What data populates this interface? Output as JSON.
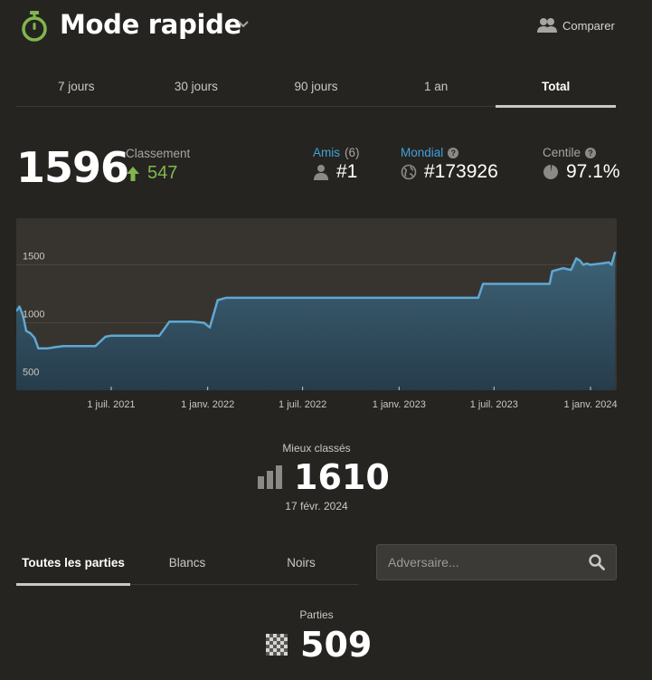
{
  "header": {
    "title": "Mode rapide",
    "compare_label": "Comparer"
  },
  "period_tabs": [
    {
      "label": "7 jours",
      "active": false
    },
    {
      "label": "30 jours",
      "active": false
    },
    {
      "label": "90 jours",
      "active": false
    },
    {
      "label": "1 an",
      "active": false
    },
    {
      "label": "Total",
      "active": true
    }
  ],
  "stats": {
    "rating": "1596",
    "rank_label": "Classement",
    "rank_change": "547",
    "friends_label": "Amis",
    "friends_count": "(6)",
    "friends_rank": "#1",
    "global_label": "Mondial",
    "global_rank": "#173926",
    "percentile_label": "Centile",
    "percentile_value": "97.1%"
  },
  "chart_data": {
    "type": "area",
    "y_ticks": [
      "1500",
      "1000",
      "500"
    ],
    "ylim": [
      420,
      1900
    ],
    "grid": true,
    "x_tick_labels": [
      "1 juil. 2021",
      "1 janv. 2022",
      "1 juil. 2022",
      "1 janv. 2023",
      "1 juil. 2023",
      "1 janv. 2024"
    ],
    "x_tick_dates": [
      "2021-07-01",
      "2022-01-01",
      "2022-07-01",
      "2023-01-01",
      "2023-07-01",
      "2024-01-01"
    ],
    "x": [
      "2021-01-01",
      "2021-01-07",
      "2021-01-14",
      "2021-01-20",
      "2021-01-28",
      "2021-02-05",
      "2021-02-12",
      "2021-03-01",
      "2021-03-15",
      "2021-04-01",
      "2021-05-01",
      "2021-06-01",
      "2021-06-20",
      "2021-07-01",
      "2021-08-15",
      "2021-10-01",
      "2021-10-20",
      "2021-11-15",
      "2021-12-01",
      "2021-12-25",
      "2022-01-05",
      "2022-01-20",
      "2022-02-05",
      "2022-02-12",
      "2022-03-01",
      "2022-06-01",
      "2022-10-01",
      "2023-01-01",
      "2023-05-01",
      "2023-06-01",
      "2023-06-10",
      "2023-09-01",
      "2023-10-15",
      "2023-10-20",
      "2023-11-10",
      "2023-11-25",
      "2023-12-05",
      "2023-12-12",
      "2023-12-18",
      "2023-12-25",
      "2024-01-01",
      "2024-01-20",
      "2024-02-05",
      "2024-02-10",
      "2024-02-17"
    ],
    "values": [
      1100,
      1140,
      1060,
      930,
      910,
      870,
      780,
      780,
      790,
      800,
      800,
      800,
      880,
      890,
      890,
      890,
      1010,
      1010,
      1010,
      1000,
      960,
      1195,
      1215,
      1215,
      1215,
      1215,
      1215,
      1215,
      1215,
      1215,
      1335,
      1335,
      1335,
      1445,
      1470,
      1455,
      1555,
      1535,
      1500,
      1510,
      1500,
      1510,
      1520,
      1500,
      1610
    ]
  },
  "best": {
    "label": "Mieux classés",
    "value": "1610",
    "date": "17 févr. 2024"
  },
  "game_tabs": [
    {
      "label": "Toutes les parties",
      "active": true
    },
    {
      "label": "Blancs",
      "active": false
    },
    {
      "label": "Noirs",
      "active": false
    }
  ],
  "search": {
    "placeholder": "Adversaire..."
  },
  "games": {
    "label": "Parties",
    "count": "509"
  },
  "colors": {
    "accent_green": "#81b64c",
    "link_blue": "#3fa2d9",
    "line_blue": "#5fa8d3",
    "background": "#262421"
  },
  "icons": {
    "mode": "stopwatch-icon",
    "compare": "users-icon",
    "rank_up": "arrow-up-icon",
    "friends": "user-icon",
    "global": "globe-icon",
    "percentile": "pie-icon",
    "best": "bar-chart-icon",
    "search": "search-icon",
    "games": "chessboard-icon"
  }
}
